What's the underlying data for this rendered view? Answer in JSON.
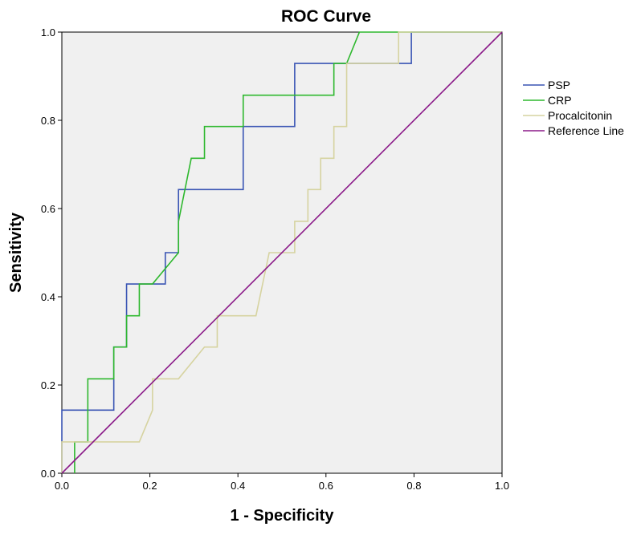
{
  "chart_data": {
    "type": "line",
    "title": "ROC Curve",
    "xlabel": "1 - Specificity",
    "ylabel": "Sensitivity",
    "xlim": [
      0,
      1
    ],
    "ylim": [
      0,
      1
    ],
    "x_ticks": [
      "0.0",
      "0.2",
      "0.4",
      "0.6",
      "0.8",
      "1.0"
    ],
    "y_ticks": [
      "0.0",
      "0.2",
      "0.4",
      "0.6",
      "0.8",
      "1.0"
    ],
    "legend_position": "right",
    "background_color": "#f0f0f0",
    "series": [
      {
        "name": "PSP",
        "color": "#3a55b4",
        "points": [
          [
            0,
            0
          ],
          [
            0,
            0.143
          ],
          [
            0.118,
            0.143
          ],
          [
            0.118,
            0.286
          ],
          [
            0.147,
            0.286
          ],
          [
            0.147,
            0.429
          ],
          [
            0.235,
            0.429
          ],
          [
            0.235,
            0.5
          ],
          [
            0.265,
            0.5
          ],
          [
            0.265,
            0.643
          ],
          [
            0.412,
            0.643
          ],
          [
            0.412,
            0.786
          ],
          [
            0.529,
            0.786
          ],
          [
            0.529,
            0.929
          ],
          [
            0.794,
            0.929
          ],
          [
            0.794,
            1.0
          ],
          [
            1.0,
            1.0
          ]
        ]
      },
      {
        "name": "CRP",
        "color": "#2eb82e",
        "points": [
          [
            0.029,
            0
          ],
          [
            0.029,
            0.071
          ],
          [
            0.059,
            0.071
          ],
          [
            0.059,
            0.214
          ],
          [
            0.118,
            0.214
          ],
          [
            0.118,
            0.286
          ],
          [
            0.147,
            0.286
          ],
          [
            0.147,
            0.357
          ],
          [
            0.176,
            0.357
          ],
          [
            0.176,
            0.429
          ],
          [
            0.206,
            0.429
          ],
          [
            0.265,
            0.5
          ],
          [
            0.265,
            0.571
          ],
          [
            0.294,
            0.714
          ],
          [
            0.324,
            0.714
          ],
          [
            0.324,
            0.786
          ],
          [
            0.412,
            0.786
          ],
          [
            0.412,
            0.857
          ],
          [
            0.618,
            0.857
          ],
          [
            0.618,
            0.929
          ],
          [
            0.647,
            0.929
          ],
          [
            0.676,
            1.0
          ],
          [
            1.0,
            1.0
          ]
        ]
      },
      {
        "name": "Procalcitonin",
        "color": "#d6d3a0",
        "points": [
          [
            0,
            0
          ],
          [
            0,
            0.071
          ],
          [
            0.176,
            0.071
          ],
          [
            0.206,
            0.143
          ],
          [
            0.206,
            0.214
          ],
          [
            0.265,
            0.214
          ],
          [
            0.324,
            0.286
          ],
          [
            0.353,
            0.286
          ],
          [
            0.353,
            0.357
          ],
          [
            0.441,
            0.357
          ],
          [
            0.471,
            0.5
          ],
          [
            0.529,
            0.5
          ],
          [
            0.529,
            0.571
          ],
          [
            0.559,
            0.571
          ],
          [
            0.559,
            0.643
          ],
          [
            0.588,
            0.643
          ],
          [
            0.588,
            0.714
          ],
          [
            0.618,
            0.714
          ],
          [
            0.618,
            0.786
          ],
          [
            0.647,
            0.786
          ],
          [
            0.647,
            0.929
          ],
          [
            0.765,
            0.929
          ],
          [
            0.765,
            1.0
          ],
          [
            1.0,
            1.0
          ]
        ]
      },
      {
        "name": "Reference Line",
        "color": "#8b1a89",
        "points": [
          [
            0,
            0
          ],
          [
            1,
            1
          ]
        ]
      }
    ]
  }
}
